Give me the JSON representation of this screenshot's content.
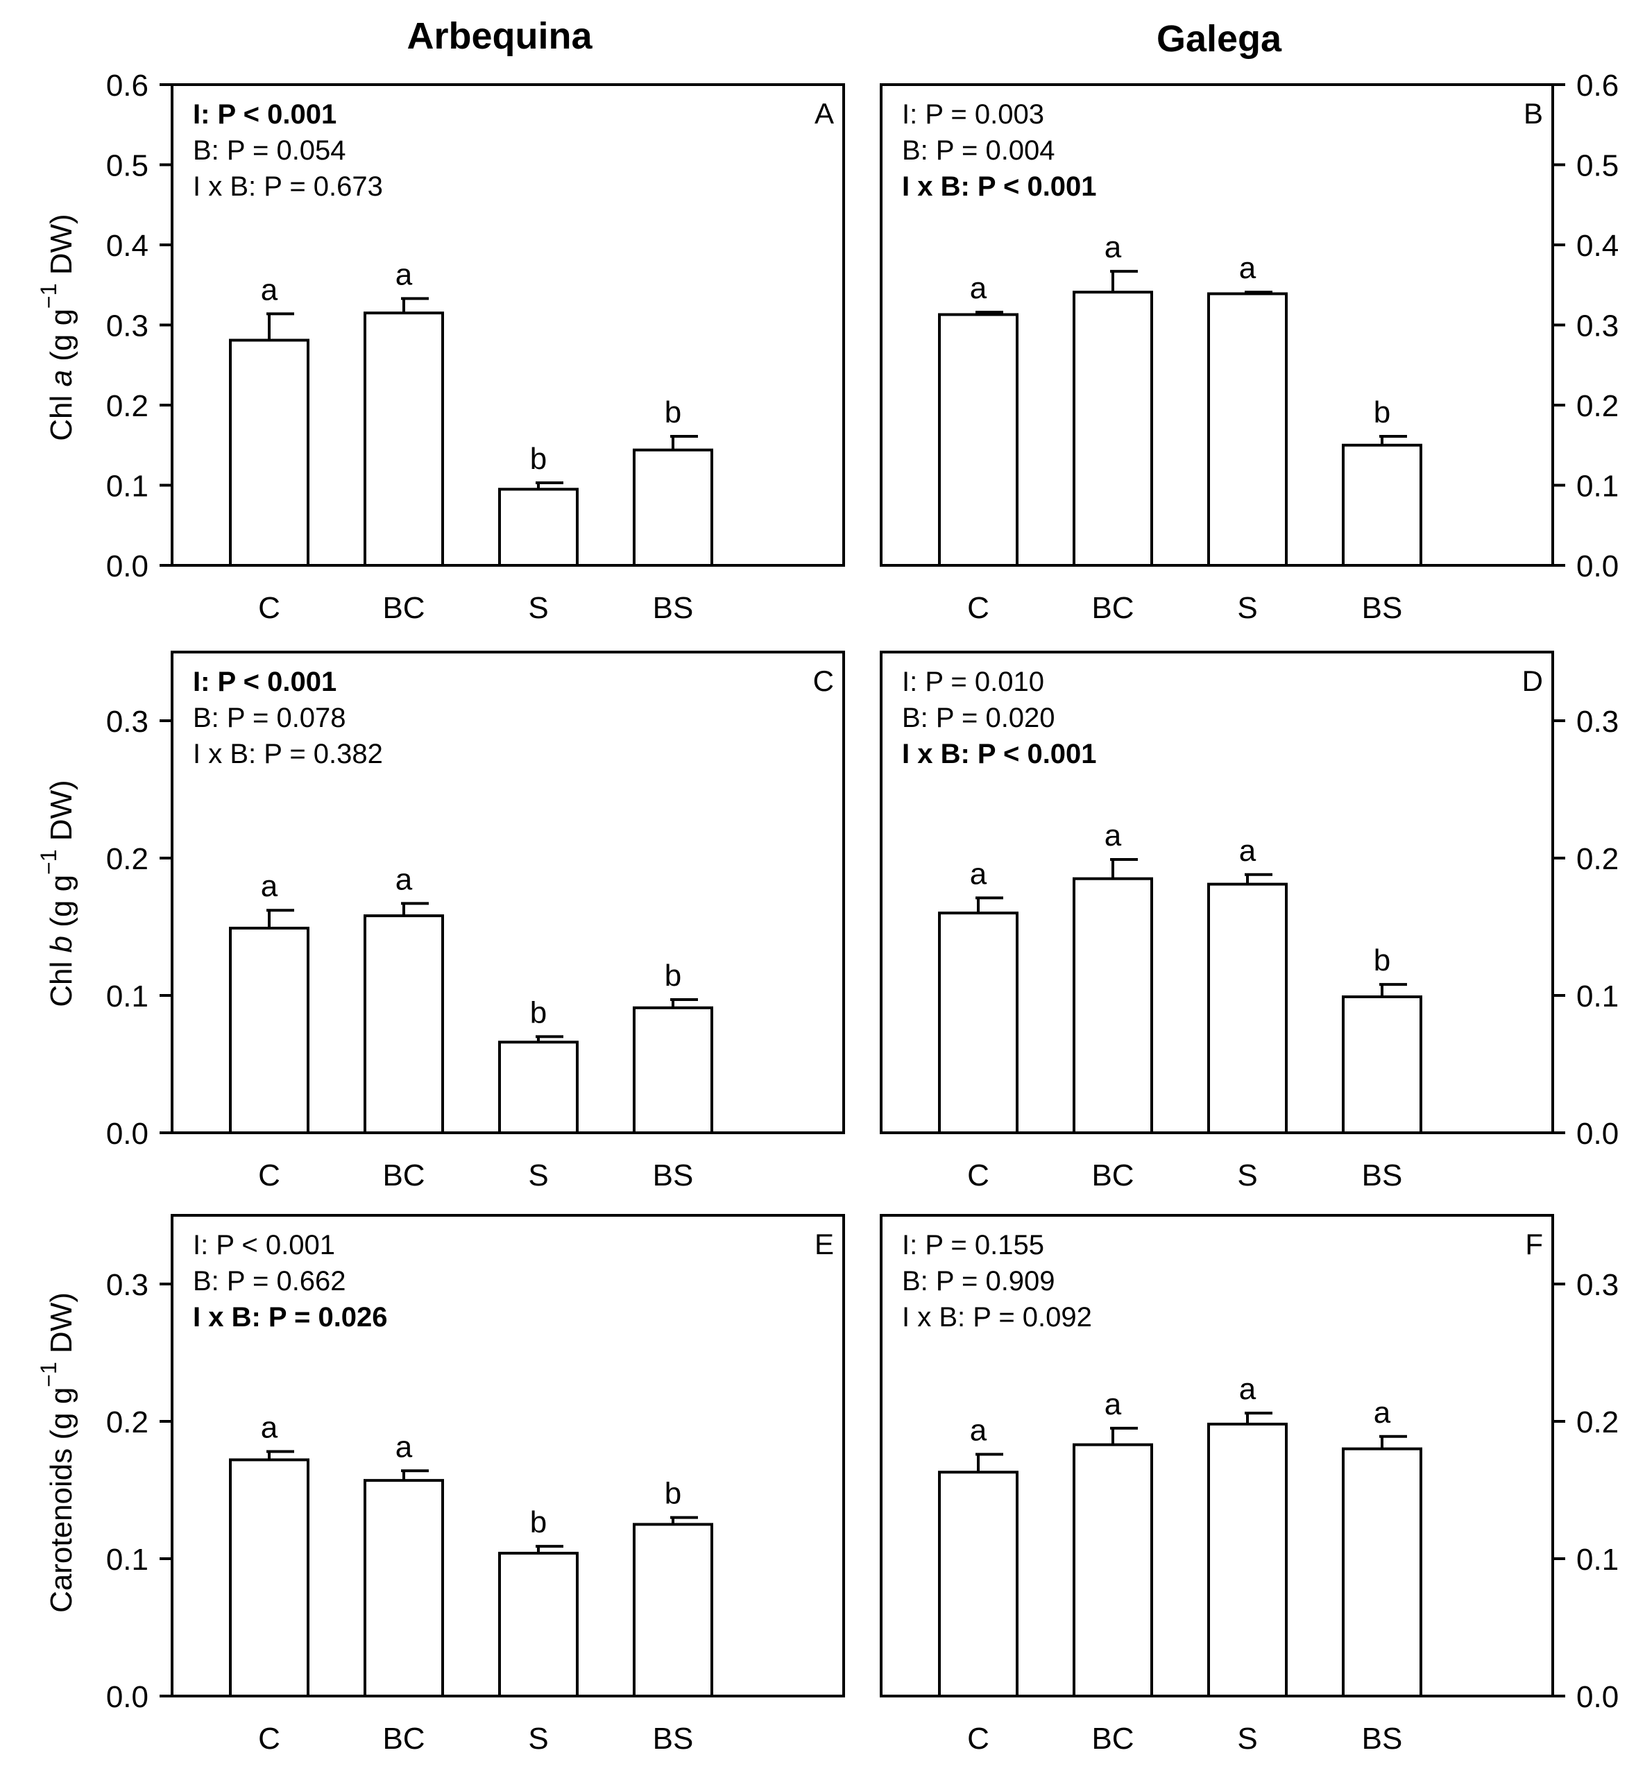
{
  "column_titles": [
    "Arbequina",
    "Galega"
  ],
  "categories": [
    "C",
    "BC",
    "S",
    "BS"
  ],
  "y_labels": {
    "row0": {
      "prefix": "Chl ",
      "italic": "a",
      "middle": " (g g",
      "sup": "−1",
      "suffix": " DW)"
    },
    "row1": {
      "prefix": "Chl ",
      "italic": "b",
      "middle": " (g g",
      "sup": "−1",
      "suffix": " DW)"
    },
    "row2": {
      "prefix": "Carotenoids ",
      "italic": "",
      "middle": "(g g",
      "sup": "−1",
      "suffix": " DW)"
    }
  },
  "chart_data": [
    {
      "type": "bar",
      "panel": "A",
      "cultivar": "Arbequina",
      "variable": "Chl a",
      "categories": [
        "C",
        "BC",
        "S",
        "BS"
      ],
      "values": [
        0.281,
        0.315,
        0.095,
        0.144
      ],
      "errors": [
        0.033,
        0.018,
        0.008,
        0.017
      ],
      "letters": [
        "a",
        "a",
        "b",
        "b"
      ],
      "ylim": [
        0,
        0.6
      ],
      "yticks": [
        "0.0",
        "0.1",
        "0.2",
        "0.3",
        "0.4",
        "0.5",
        "0.6"
      ],
      "stats": [
        {
          "text": "I: P < 0.001",
          "bold": true
        },
        {
          "text": "B: P = 0.054",
          "bold": false
        },
        {
          "text": "I x B: P = 0.673",
          "bold": false
        }
      ]
    },
    {
      "type": "bar",
      "panel": "B",
      "cultivar": "Galega",
      "variable": "Chl a",
      "categories": [
        "C",
        "BC",
        "S",
        "BS"
      ],
      "values": [
        0.313,
        0.341,
        0.339,
        0.15
      ],
      "errors": [
        0.003,
        0.026,
        0.002,
        0.011
      ],
      "letters": [
        "a",
        "a",
        "a",
        "b"
      ],
      "ylim": [
        0,
        0.6
      ],
      "yticks": [
        "0.0",
        "0.1",
        "0.2",
        "0.3",
        "0.4",
        "0.5",
        "0.6"
      ],
      "stats": [
        {
          "text": "I: P = 0.003",
          "bold": false
        },
        {
          "text": "B: P = 0.004",
          "bold": false
        },
        {
          "text": "I x B: P < 0.001",
          "bold": true
        }
      ]
    },
    {
      "type": "bar",
      "panel": "C",
      "cultivar": "Arbequina",
      "variable": "Chl b",
      "categories": [
        "C",
        "BC",
        "S",
        "BS"
      ],
      "values": [
        0.149,
        0.158,
        0.066,
        0.091
      ],
      "errors": [
        0.013,
        0.009,
        0.004,
        0.006
      ],
      "letters": [
        "a",
        "a",
        "b",
        "b"
      ],
      "ylim": [
        0,
        0.35
      ],
      "yticks": [
        "0.0",
        "0.1",
        "0.2",
        "0.3"
      ],
      "stats": [
        {
          "text": "I: P < 0.001",
          "bold": true
        },
        {
          "text": "B: P = 0.078",
          "bold": false
        },
        {
          "text": "I x B: P = 0.382",
          "bold": false
        }
      ]
    },
    {
      "type": "bar",
      "panel": "D",
      "cultivar": "Galega",
      "variable": "Chl b",
      "categories": [
        "C",
        "BC",
        "S",
        "BS"
      ],
      "values": [
        0.16,
        0.185,
        0.181,
        0.099
      ],
      "errors": [
        0.011,
        0.014,
        0.007,
        0.009
      ],
      "letters": [
        "a",
        "a",
        "a",
        "b"
      ],
      "ylim": [
        0,
        0.35
      ],
      "yticks": [
        "0.0",
        "0.1",
        "0.2",
        "0.3"
      ],
      "stats": [
        {
          "text": "I: P = 0.010",
          "bold": false
        },
        {
          "text": "B: P = 0.020",
          "bold": false
        },
        {
          "text": "I x B: P < 0.001",
          "bold": true
        }
      ]
    },
    {
      "type": "bar",
      "panel": "E",
      "cultivar": "Arbequina",
      "variable": "Carotenoids",
      "categories": [
        "C",
        "BC",
        "S",
        "BS"
      ],
      "values": [
        0.172,
        0.157,
        0.104,
        0.125
      ],
      "errors": [
        0.006,
        0.007,
        0.005,
        0.005
      ],
      "letters": [
        "a",
        "a",
        "b",
        "b"
      ],
      "ylim": [
        0,
        0.35
      ],
      "yticks": [
        "0.0",
        "0.1",
        "0.2",
        "0.3"
      ],
      "stats": [
        {
          "text": "I: P < 0.001",
          "bold": false
        },
        {
          "text": "B: P = 0.662",
          "bold": false
        },
        {
          "text": "I x B: P = 0.026",
          "bold": true
        }
      ]
    },
    {
      "type": "bar",
      "panel": "F",
      "cultivar": "Galega",
      "variable": "Carotenoids",
      "categories": [
        "C",
        "BC",
        "S",
        "BS"
      ],
      "values": [
        0.163,
        0.183,
        0.198,
        0.18
      ],
      "errors": [
        0.013,
        0.012,
        0.008,
        0.009
      ],
      "letters": [
        "a",
        "a",
        "a",
        "a"
      ],
      "ylim": [
        0,
        0.35
      ],
      "yticks": [
        "0.0",
        "0.1",
        "0.2",
        "0.3"
      ],
      "stats": [
        {
          "text": "I: P = 0.155",
          "bold": false
        },
        {
          "text": "B: P = 0.909",
          "bold": false
        },
        {
          "text": "I x B: P = 0.092",
          "bold": false
        }
      ]
    }
  ]
}
